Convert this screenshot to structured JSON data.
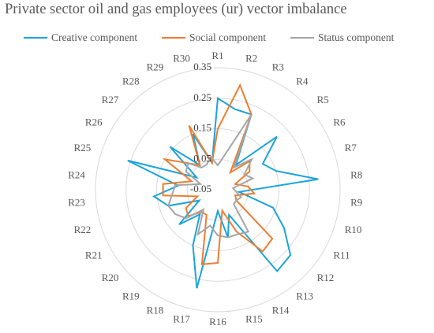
{
  "chart_data": {
    "type": "radar",
    "title": "Private sector oil and gas employees (ur) vector imbalance",
    "categories": [
      "R1",
      "R2",
      "R3",
      "R4",
      "R5",
      "R6",
      "R7",
      "R8",
      "R9",
      "R10",
      "R11",
      "R12",
      "R13",
      "R14",
      "R15",
      "R16",
      "R17",
      "R18",
      "R19",
      "R20",
      "R21",
      "R22",
      "R23",
      "R24",
      "R25",
      "R26",
      "R27",
      "R28",
      "R29",
      "R30"
    ],
    "axis": {
      "min": -0.05,
      "max": 0.35,
      "ticks": [
        -0.05,
        0.05,
        0.15,
        0.25,
        0.35
      ],
      "tick_labels": [
        "-0.05",
        "0.05",
        "0.15",
        "0.25",
        "0.35"
      ]
    },
    "grid": true,
    "legend_position": "top",
    "series": [
      {
        "name": "Creative component",
        "color": "#1AA3DC",
        "values": [
          0.25,
          0.22,
          0.22,
          0.05,
          0.21,
          0.12,
          0.15,
          0.28,
          0.02,
          0.14,
          0.2,
          0.27,
          0.28,
          0.04,
          0.11,
          0.02,
          0.28,
          0.15,
          0.05,
          0.12,
          0.02,
          0.12,
          0.16,
          0.08,
          0.26,
          0.03,
          0.16,
          0.05,
          0.15,
          0.04
        ]
      },
      {
        "name": "Social component",
        "color": "#ED7D31",
        "values": [
          0.15,
          0.3,
          0.22,
          0.02,
          0.09,
          0.07,
          0.01,
          0.05,
          0.07,
          0.01,
          0.02,
          0.19,
          0.2,
          0.1,
          0.02,
          0.19,
          0.2,
          0.04,
          0.04,
          0.08,
          0.07,
          0.02,
          0.13,
          0.13,
          0.04,
          0.15,
          0.08,
          0.05,
          0.18,
          0.04
        ]
      },
      {
        "name": "Status component",
        "color": "#A5A5A5",
        "values": [
          0.03,
          0.07,
          0.22,
          0.04,
          0.1,
          0.05,
          0.07,
          0.0,
          0.01,
          0.03,
          0.02,
          0.02,
          0.12,
          0.11,
          0.11,
          0.1,
          0.07,
          0.11,
          0.03,
          0.09,
          0.11,
          0.12,
          0.1,
          0.09,
          0.01,
          0.07,
          0.08,
          0.04,
          0.04,
          0.06
        ]
      }
    ]
  }
}
